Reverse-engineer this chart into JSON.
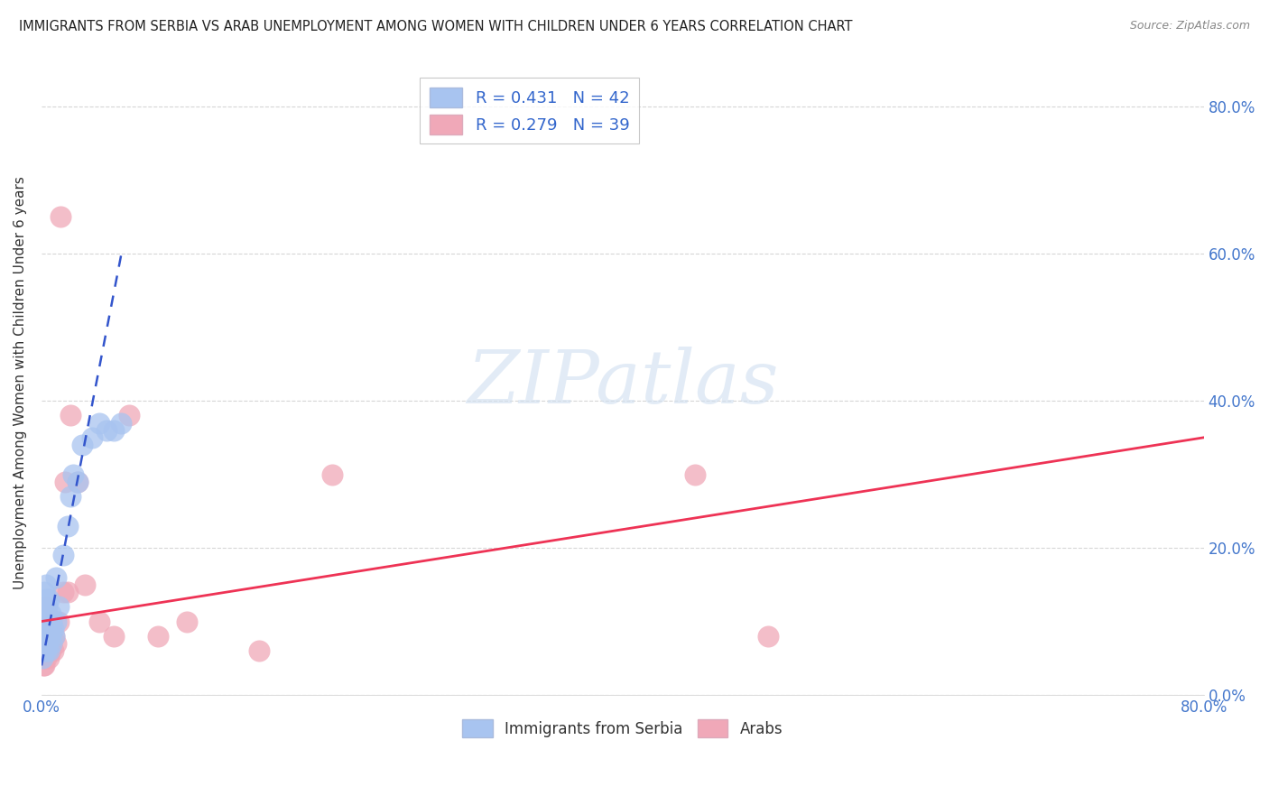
{
  "title": "IMMIGRANTS FROM SERBIA VS ARAB UNEMPLOYMENT AMONG WOMEN WITH CHILDREN UNDER 6 YEARS CORRELATION CHART",
  "source": "Source: ZipAtlas.com",
  "ylabel": "Unemployment Among Women with Children Under 6 years",
  "legend_serbia": "R = 0.431   N = 42",
  "legend_arab": "R = 0.279   N = 39",
  "serbia_color": "#a8c4f0",
  "arab_color": "#f0a8b8",
  "serbia_line_color": "#3355cc",
  "arab_line_color": "#ee3355",
  "watermark_text": "ZIPatlas",
  "xlim": [
    0.0,
    0.8
  ],
  "ylim": [
    0.0,
    0.85
  ],
  "background_color": "#ffffff",
  "grid_color": "#cccccc",
  "serbia_x": [
    0.0005,
    0.001,
    0.001,
    0.001,
    0.0015,
    0.0015,
    0.002,
    0.002,
    0.002,
    0.002,
    0.0025,
    0.003,
    0.003,
    0.003,
    0.003,
    0.003,
    0.004,
    0.004,
    0.004,
    0.005,
    0.005,
    0.005,
    0.006,
    0.006,
    0.007,
    0.007,
    0.008,
    0.009,
    0.01,
    0.01,
    0.012,
    0.015,
    0.018,
    0.02,
    0.022,
    0.025,
    0.028,
    0.035,
    0.04,
    0.045,
    0.05,
    0.055
  ],
  "serbia_y": [
    0.05,
    0.06,
    0.08,
    0.12,
    0.07,
    0.1,
    0.06,
    0.08,
    0.11,
    0.14,
    0.07,
    0.06,
    0.08,
    0.1,
    0.13,
    0.15,
    0.07,
    0.09,
    0.12,
    0.06,
    0.09,
    0.13,
    0.08,
    0.11,
    0.07,
    0.1,
    0.09,
    0.08,
    0.1,
    0.16,
    0.12,
    0.19,
    0.23,
    0.27,
    0.3,
    0.29,
    0.34,
    0.35,
    0.37,
    0.36,
    0.36,
    0.37
  ],
  "arab_x": [
    0.0005,
    0.001,
    0.001,
    0.0015,
    0.002,
    0.002,
    0.002,
    0.003,
    0.003,
    0.003,
    0.003,
    0.004,
    0.004,
    0.004,
    0.005,
    0.005,
    0.006,
    0.006,
    0.007,
    0.008,
    0.009,
    0.01,
    0.012,
    0.013,
    0.015,
    0.016,
    0.018,
    0.02,
    0.025,
    0.03,
    0.04,
    0.05,
    0.06,
    0.08,
    0.1,
    0.15,
    0.2,
    0.45,
    0.5
  ],
  "arab_y": [
    0.05,
    0.04,
    0.06,
    0.05,
    0.04,
    0.07,
    0.1,
    0.05,
    0.07,
    0.09,
    0.12,
    0.06,
    0.08,
    0.11,
    0.05,
    0.08,
    0.06,
    0.09,
    0.07,
    0.06,
    0.08,
    0.07,
    0.1,
    0.65,
    0.14,
    0.29,
    0.14,
    0.38,
    0.29,
    0.15,
    0.1,
    0.08,
    0.38,
    0.08,
    0.1,
    0.06,
    0.3,
    0.3,
    0.08
  ],
  "serbia_trend_x": [
    0.0,
    0.055
  ],
  "serbia_trend_y": [
    0.04,
    0.6
  ],
  "arab_trend_x": [
    0.0,
    0.8
  ],
  "arab_trend_y": [
    0.1,
    0.35
  ]
}
